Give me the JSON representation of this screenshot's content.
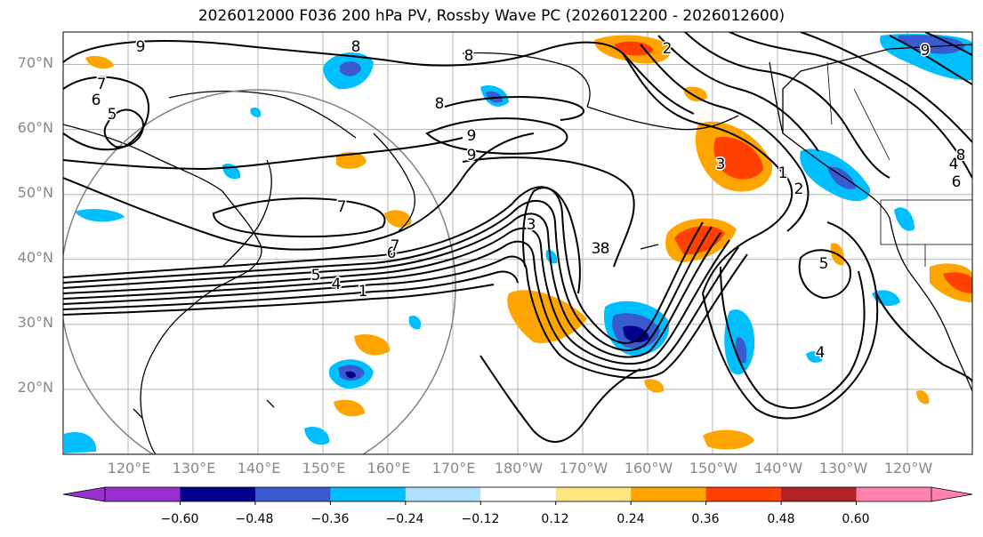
{
  "title": "2026012000 F036 200 hPa PV, Rossby Wave PC (2026012200 - 2026012600)",
  "lat_labels": [
    "70°N",
    "60°N",
    "50°N",
    "40°N",
    "30°N",
    "20°N"
  ],
  "lon_labels": [
    "120°E",
    "130°E",
    "140°E",
    "150°E",
    "160°E",
    "170°E",
    "180°W",
    "170°W",
    "160°W",
    "150°W",
    "140°W",
    "130°W",
    "120°W"
  ],
  "map_extent": {
    "lon_min": 110,
    "lon_max": 250,
    "lat_min": 10,
    "lat_max": 75
  },
  "colorbar": {
    "labels": [
      "−0.60",
      "−0.48",
      "−0.36",
      "−0.24",
      "−0.12",
      "0.12",
      "0.24",
      "0.36",
      "0.48",
      "0.60"
    ],
    "colors": [
      "#9b30d0",
      "#00008b",
      "#3a5ad0",
      "#00bfff",
      "#b0e2ff",
      "#ffffff",
      "#ffe680",
      "#ffa500",
      "#ff4000",
      "#b22222",
      "#ff82ab"
    ]
  },
  "contour_labels": [
    "9",
    "8",
    "7",
    "6",
    "5",
    "8",
    "8",
    "9",
    "9",
    "7",
    "6",
    "5",
    "4",
    "3",
    "2",
    "1",
    "3",
    "8",
    "3",
    "1",
    "2",
    "5",
    "4",
    "4",
    "8",
    "7",
    "6",
    "9"
  ]
}
